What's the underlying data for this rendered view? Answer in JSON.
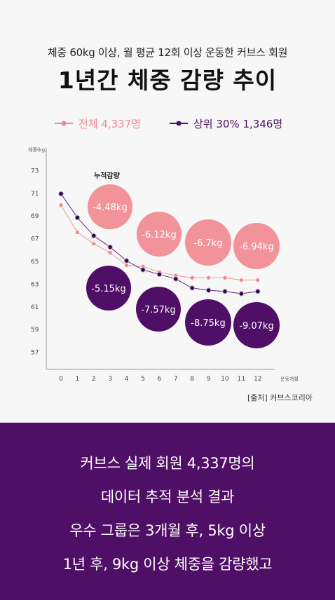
{
  "header": {
    "subtitle": "체중 60kg 이상, 월 평균 12회 이상 운동한 커브스 회원",
    "title": "1년간 체중 감량 추이"
  },
  "colors": {
    "all_members": "#f08a8f",
    "top_30": "#4f0f66",
    "bottom_bg": "#4f0f66"
  },
  "chart_data": {
    "type": "line",
    "ylabel": "체중(kg)",
    "xlabel": "운동개월",
    "x": [
      0,
      1,
      2,
      3,
      4,
      5,
      6,
      7,
      8,
      9,
      10,
      11,
      12
    ],
    "yticks": [
      73,
      71,
      69,
      67,
      65,
      63,
      61,
      59,
      57
    ],
    "ylim": [
      55.5,
      74.5
    ],
    "legend_position": "top",
    "annotation_title": "누적감량",
    "series": [
      {
        "name": "전체 4,337명",
        "values": [
          69.9,
          67.5,
          66.5,
          65.7,
          64.6,
          64.5,
          64.0,
          63.7,
          63.5,
          63.5,
          63.5,
          63.3,
          63.3
        ],
        "bubbles": [
          {
            "x": 3,
            "label": "-4.48kg"
          },
          {
            "x": 6,
            "label": "-6.12kg"
          },
          {
            "x": 9,
            "label": "-6.7kg"
          },
          {
            "x": 12,
            "label": "-6.94kg"
          }
        ]
      },
      {
        "name": "상위 30% 1,346명",
        "values": [
          70.9,
          68.8,
          67.2,
          66.2,
          65.0,
          64.2,
          63.8,
          63.4,
          62.6,
          62.4,
          62.3,
          62.1,
          62.3
        ],
        "bubbles": [
          {
            "x": 3,
            "label": "-5.15kg"
          },
          {
            "x": 6,
            "label": "-7.57kg"
          },
          {
            "x": 9,
            "label": "-8.75kg"
          },
          {
            "x": 12,
            "label": "-9.07kg"
          }
        ]
      }
    ]
  },
  "source": "[출처] 커브스코리아",
  "bottom": {
    "lines": [
      "커브스 실제 회원 4,337명의",
      "데이터 추적 분석 결과",
      "우수 그룹은 3개월 후, 5kg 이상",
      "1년 후, 9kg 이상 체중을 감량했고"
    ]
  }
}
